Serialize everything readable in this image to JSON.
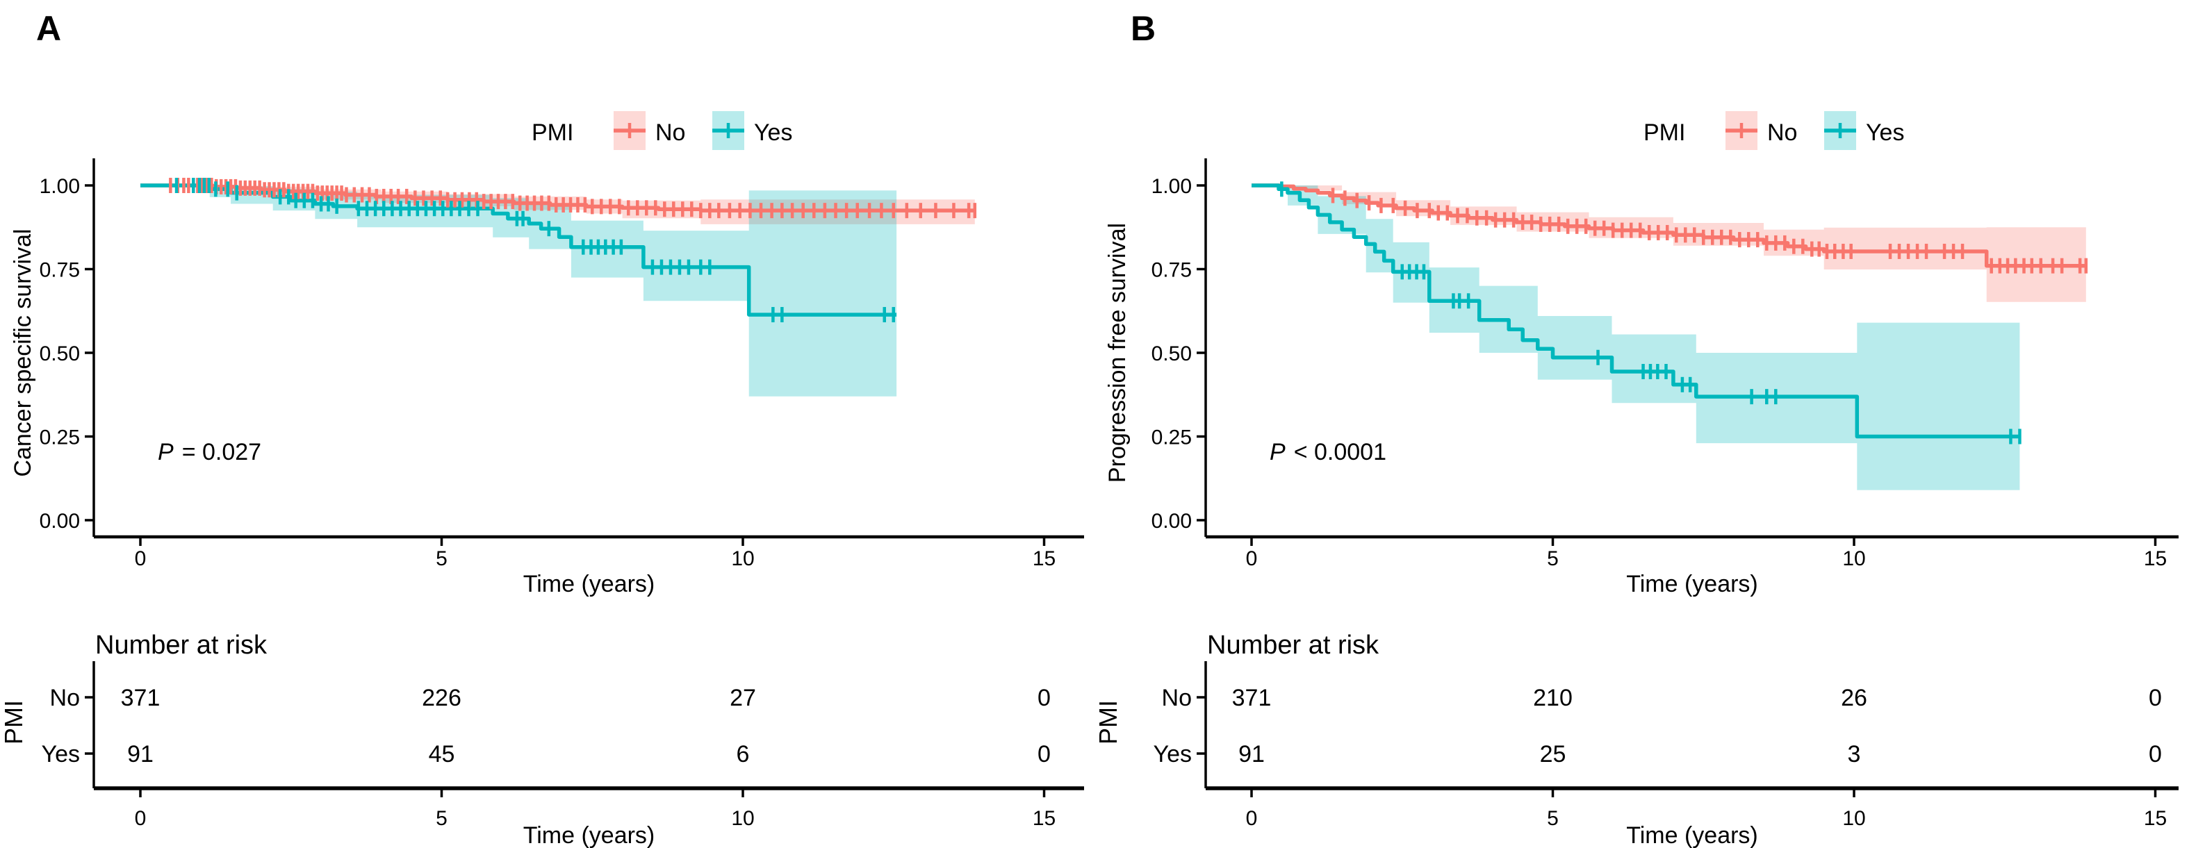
{
  "colors": {
    "no": "#F8766D",
    "yes": "#00B7BC",
    "no_band": "rgba(248,118,109,0.28)",
    "yes_band": "rgba(0,183,188,0.28)",
    "axis": "#000000",
    "text": "#000000"
  },
  "chart_data": [
    {
      "type": "line",
      "subtype": "kaplan_meier_step",
      "panel_label": "A",
      "xlabel": "Time (years)",
      "ylabel": "Cancer specific survival",
      "xlim": [
        0,
        15
      ],
      "ylim": [
        0,
        1
      ],
      "grid": false,
      "x_ticks": [
        {
          "label": "0",
          "value": 0
        },
        {
          "label": "5",
          "value": 5
        },
        {
          "label": "10",
          "value": 10
        },
        {
          "label": "15",
          "value": 15
        }
      ],
      "y_ticks": [
        {
          "label": "1.00",
          "value": 1.0
        },
        {
          "label": "0.75",
          "value": 0.75
        },
        {
          "label": "0.50",
          "value": 0.5
        },
        {
          "label": "0.25",
          "value": 0.25
        },
        {
          "label": "0.00",
          "value": 0.0
        }
      ],
      "legend": {
        "title": "PMI",
        "position": "top",
        "items": [
          {
            "label": "No",
            "color": "#F8766D"
          },
          {
            "label": "Yes",
            "color": "#00B7BC"
          }
        ]
      },
      "p_value_text": "P = 0.027",
      "series": [
        {
          "name": "No",
          "color": "#F8766D",
          "band_color": "rgba(248,118,109,0.28)",
          "end_time": 13.85,
          "steps": [
            [
              0,
              1
            ],
            [
              1.2,
              0.996
            ],
            [
              1.6,
              0.992
            ],
            [
              2.0,
              0.987
            ],
            [
              2.4,
              0.982
            ],
            [
              2.9,
              0.977
            ],
            [
              3.4,
              0.972
            ],
            [
              3.9,
              0.967
            ],
            [
              4.5,
              0.962
            ],
            [
              5.1,
              0.957
            ],
            [
              5.7,
              0.952
            ],
            [
              6.2,
              0.947
            ],
            [
              6.8,
              0.942
            ],
            [
              7.4,
              0.937
            ],
            [
              8.0,
              0.933
            ],
            [
              8.6,
              0.929
            ],
            [
              9.3,
              0.925
            ]
          ],
          "ci_band": [
            [
              0,
              1,
              1
            ],
            [
              1.2,
              0.99,
              1.0
            ],
            [
              2.0,
              0.975,
              0.996
            ],
            [
              3.0,
              0.958,
              0.988
            ],
            [
              4.0,
              0.948,
              0.982
            ],
            [
              5.1,
              0.938,
              0.974
            ],
            [
              6.2,
              0.927,
              0.967
            ],
            [
              7.4,
              0.916,
              0.958
            ],
            [
              8.0,
              0.902,
              0.955
            ],
            [
              9.3,
              0.884,
              0.958
            ],
            [
              13.85,
              0.884,
              0.958
            ]
          ],
          "censor_times": [
            0.5,
            0.62,
            0.72,
            0.8,
            0.88,
            0.95,
            1.02,
            1.1,
            1.18,
            1.26,
            1.34,
            1.42,
            1.5,
            1.58,
            1.66,
            1.74,
            1.82,
            1.9,
            1.98,
            2.06,
            2.14,
            2.22,
            2.3,
            2.38,
            2.46,
            2.54,
            2.62,
            2.7,
            2.78,
            2.86,
            2.94,
            3.02,
            3.1,
            3.18,
            3.26,
            3.34,
            3.42,
            3.55,
            3.68,
            3.8,
            3.92,
            4.04,
            4.16,
            4.28,
            4.42,
            4.56,
            4.7,
            4.84,
            4.98,
            5.1,
            5.22,
            5.34,
            5.46,
            5.58,
            5.7,
            5.82,
            5.94,
            6.06,
            6.18,
            6.3,
            6.42,
            6.54,
            6.66,
            6.78,
            6.9,
            7.02,
            7.14,
            7.26,
            7.38,
            7.5,
            7.65,
            7.8,
            7.95,
            8.1,
            8.25,
            8.4,
            8.55,
            8.7,
            8.85,
            9.0,
            9.15,
            9.3,
            9.45,
            9.6,
            9.78,
            9.95,
            10.12,
            10.3,
            10.48,
            10.65,
            10.82,
            11.0,
            11.18,
            11.36,
            11.54,
            11.72,
            11.9,
            12.1,
            12.3,
            12.5,
            12.72,
            12.95,
            13.2,
            13.5,
            13.75,
            13.85
          ]
        },
        {
          "name": "Yes",
          "color": "#00B7BC",
          "band_color": "rgba(0,183,188,0.28)",
          "end_time": 12.55,
          "steps": [
            [
              0,
              1
            ],
            [
              1.15,
              0.989
            ],
            [
              1.5,
              0.978
            ],
            [
              2.2,
              0.966
            ],
            [
              2.5,
              0.955
            ],
            [
              2.9,
              0.945
            ],
            [
              3.2,
              0.938
            ],
            [
              3.6,
              0.931
            ],
            [
              5.85,
              0.916
            ],
            [
              6.1,
              0.901
            ],
            [
              6.45,
              0.886
            ],
            [
              6.65,
              0.871
            ],
            [
              6.95,
              0.846
            ],
            [
              7.15,
              0.816
            ],
            [
              8.35,
              0.756
            ],
            [
              10.1,
              0.614
            ]
          ],
          "ci_band": [
            [
              0,
              1,
              1
            ],
            [
              1.15,
              0.965,
              1.0
            ],
            [
              1.5,
              0.945,
              0.998
            ],
            [
              2.2,
              0.925,
              0.99
            ],
            [
              2.9,
              0.9,
              0.982
            ],
            [
              3.6,
              0.875,
              0.972
            ],
            [
              5.85,
              0.845,
              0.962
            ],
            [
              6.45,
              0.81,
              0.945
            ],
            [
              7.15,
              0.725,
              0.895
            ],
            [
              8.35,
              0.655,
              0.865
            ],
            [
              10.1,
              0.37,
              0.985
            ],
            [
              12.55,
              0.37,
              0.985
            ]
          ],
          "censor_times": [
            0.6,
            0.88,
            0.98,
            1.06,
            1.14,
            1.25,
            1.45,
            1.6,
            2.32,
            2.46,
            2.58,
            2.72,
            2.86,
            3.0,
            3.12,
            3.26,
            3.62,
            3.76,
            3.9,
            4.04,
            4.18,
            4.32,
            4.46,
            4.6,
            4.74,
            4.88,
            5.02,
            5.16,
            5.3,
            5.45,
            5.6,
            6.25,
            6.35,
            6.78,
            7.35,
            7.48,
            7.6,
            7.72,
            7.85,
            7.98,
            8.5,
            8.65,
            8.8,
            8.95,
            9.1,
            9.3,
            9.45,
            10.5,
            10.65,
            12.35,
            12.5
          ]
        }
      ],
      "number_at_risk": {
        "title": "Number at risk",
        "group_label": "PMI",
        "time_points": [
          0,
          5,
          10,
          15
        ],
        "rows": [
          {
            "label": "No",
            "color": "#F8766D",
            "values": [
              "371",
              "226",
              "27",
              "0"
            ]
          },
          {
            "label": "Yes",
            "color": "#00B7BC",
            "values": [
              "91",
              "45",
              "6",
              "0"
            ]
          }
        ]
      }
    },
    {
      "type": "line",
      "subtype": "kaplan_meier_step",
      "panel_label": "B",
      "xlabel": "Time (years)",
      "ylabel": "Progression free survival",
      "xlim": [
        0,
        15
      ],
      "ylim": [
        0,
        1
      ],
      "grid": false,
      "x_ticks": [
        {
          "label": "0",
          "value": 0
        },
        {
          "label": "5",
          "value": 5
        },
        {
          "label": "10",
          "value": 10
        },
        {
          "label": "15",
          "value": 15
        }
      ],
      "y_ticks": [
        {
          "label": "1.00",
          "value": 1.0
        },
        {
          "label": "0.75",
          "value": 0.75
        },
        {
          "label": "0.50",
          "value": 0.5
        },
        {
          "label": "0.25",
          "value": 0.25
        },
        {
          "label": "0.00",
          "value": 0.0
        }
      ],
      "legend": {
        "title": "PMI",
        "position": "top",
        "items": [
          {
            "label": "No",
            "color": "#F8766D"
          },
          {
            "label": "Yes",
            "color": "#00B7BC"
          }
        ]
      },
      "p_value_text": "P < 0.0001",
      "series": [
        {
          "name": "No",
          "color": "#F8766D",
          "band_color": "rgba(248,118,109,0.28)",
          "end_time": 13.85,
          "steps": [
            [
              0,
              1
            ],
            [
              0.5,
              0.997
            ],
            [
              0.7,
              0.99
            ],
            [
              0.9,
              0.985
            ],
            [
              1.1,
              0.978
            ],
            [
              1.3,
              0.97
            ],
            [
              1.5,
              0.962
            ],
            [
              1.7,
              0.955
            ],
            [
              1.9,
              0.948
            ],
            [
              2.1,
              0.94
            ],
            [
              2.4,
              0.932
            ],
            [
              2.7,
              0.925
            ],
            [
              3.0,
              0.918
            ],
            [
              3.3,
              0.91
            ],
            [
              3.6,
              0.903
            ],
            [
              4.0,
              0.897
            ],
            [
              4.4,
              0.89
            ],
            [
              4.8,
              0.884
            ],
            [
              5.2,
              0.878
            ],
            [
              5.6,
              0.872
            ],
            [
              6.0,
              0.866
            ],
            [
              6.5,
              0.859
            ],
            [
              7.0,
              0.852
            ],
            [
              7.5,
              0.845
            ],
            [
              8.0,
              0.838
            ],
            [
              8.5,
              0.828
            ],
            [
              8.9,
              0.818
            ],
            [
              9.2,
              0.81
            ],
            [
              9.5,
              0.803
            ],
            [
              12.2,
              0.76
            ]
          ],
          "ci_band": [
            [
              0,
              1,
              1
            ],
            [
              0.7,
              0.985,
              1.0
            ],
            [
              1.5,
              0.944,
              0.98
            ],
            [
              2.4,
              0.908,
              0.956
            ],
            [
              3.3,
              0.882,
              0.937
            ],
            [
              4.4,
              0.862,
              0.92
            ],
            [
              5.6,
              0.843,
              0.905
            ],
            [
              7.0,
              0.82,
              0.888
            ],
            [
              8.5,
              0.79,
              0.868
            ],
            [
              9.5,
              0.749,
              0.874
            ],
            [
              12.2,
              0.652,
              0.875
            ],
            [
              13.85,
              0.652,
              0.875
            ]
          ],
          "censor_times": [
            1.35,
            1.55,
            1.75,
            1.95,
            2.15,
            2.35,
            2.55,
            2.75,
            2.95,
            3.1,
            3.25,
            3.42,
            3.58,
            3.74,
            3.9,
            4.05,
            4.2,
            4.35,
            4.5,
            4.65,
            4.8,
            4.95,
            5.1,
            5.25,
            5.4,
            5.55,
            5.7,
            5.85,
            6.0,
            6.15,
            6.3,
            6.45,
            6.6,
            6.75,
            6.9,
            7.05,
            7.2,
            7.35,
            7.5,
            7.65,
            7.8,
            7.95,
            8.1,
            8.25,
            8.4,
            8.55,
            8.7,
            8.85,
            9.0,
            9.15,
            9.3,
            9.42,
            9.55,
            9.68,
            9.82,
            9.95,
            10.6,
            10.75,
            10.9,
            11.05,
            11.2,
            11.5,
            11.65,
            11.8,
            12.28,
            12.42,
            12.55,
            12.68,
            12.82,
            12.95,
            13.1,
            13.3,
            13.45,
            13.75,
            13.85
          ]
        },
        {
          "name": "Yes",
          "color": "#00B7BC",
          "band_color": "rgba(0,183,188,0.28)",
          "end_time": 12.75,
          "steps": [
            [
              0,
              1
            ],
            [
              0.45,
              0.989
            ],
            [
              0.6,
              0.978
            ],
            [
              0.8,
              0.956
            ],
            [
              0.95,
              0.934
            ],
            [
              1.1,
              0.912
            ],
            [
              1.3,
              0.89
            ],
            [
              1.5,
              0.868
            ],
            [
              1.7,
              0.846
            ],
            [
              1.9,
              0.825
            ],
            [
              2.05,
              0.802
            ],
            [
              2.2,
              0.775
            ],
            [
              2.35,
              0.742
            ],
            [
              2.95,
              0.655
            ],
            [
              3.78,
              0.598
            ],
            [
              4.27,
              0.57
            ],
            [
              4.5,
              0.538
            ],
            [
              4.75,
              0.512
            ],
            [
              5.0,
              0.486
            ],
            [
              5.98,
              0.444
            ],
            [
              7.0,
              0.405
            ],
            [
              7.38,
              0.369
            ],
            [
              10.05,
              0.25
            ]
          ],
          "ci_band": [
            [
              0,
              1,
              1
            ],
            [
              0.6,
              0.94,
              1.0
            ],
            [
              1.1,
              0.855,
              0.968
            ],
            [
              1.9,
              0.74,
              0.9
            ],
            [
              2.35,
              0.65,
              0.83
            ],
            [
              2.95,
              0.56,
              0.755
            ],
            [
              3.78,
              0.5,
              0.7
            ],
            [
              4.75,
              0.42,
              0.61
            ],
            [
              5.98,
              0.35,
              0.555
            ],
            [
              7.38,
              0.23,
              0.5
            ],
            [
              10.05,
              0.09,
              0.59
            ],
            [
              12.75,
              0.09,
              0.59
            ]
          ],
          "censor_times": [
            0.5,
            2.5,
            2.62,
            2.74,
            2.86,
            3.35,
            3.45,
            3.6,
            5.75,
            6.5,
            6.62,
            6.74,
            6.88,
            7.15,
            7.28,
            8.3,
            8.55,
            8.7,
            12.6,
            12.75
          ]
        }
      ],
      "number_at_risk": {
        "title": "Number at risk",
        "group_label": "PMI",
        "time_points": [
          0,
          5,
          10,
          15
        ],
        "rows": [
          {
            "label": "No",
            "color": "#F8766D",
            "values": [
              "371",
              "210",
              "26",
              "0"
            ]
          },
          {
            "label": "Yes",
            "color": "#00B7BC",
            "values": [
              "91",
              "25",
              "3",
              "0"
            ]
          }
        ]
      }
    }
  ]
}
